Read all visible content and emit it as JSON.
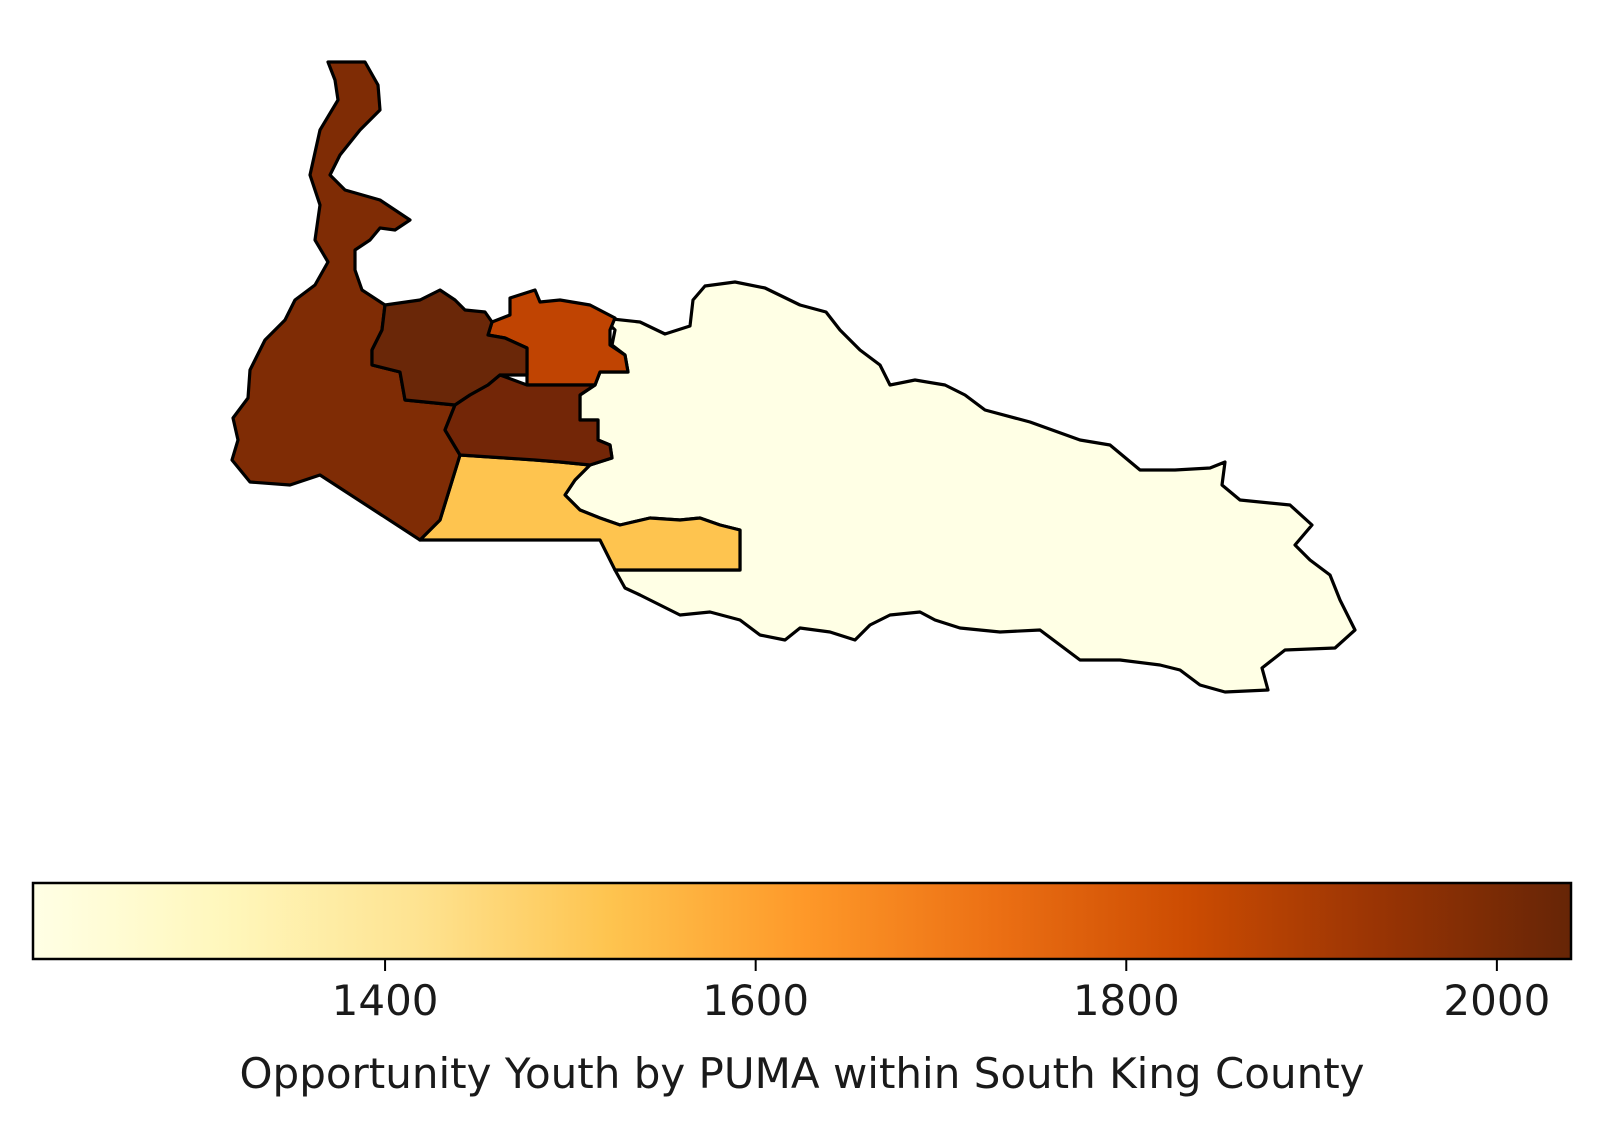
{
  "chart_data": {
    "type": "choropleth",
    "colormap": "YlOrBr",
    "colorbar": {
      "label": "Opportunity Youth by PUMA within South King County",
      "range": [
        1210,
        2040
      ],
      "ticks": [
        {
          "value": 1400,
          "label": "1400"
        },
        {
          "value": 1600,
          "label": "1600"
        },
        {
          "value": 1800,
          "label": "1800"
        },
        {
          "value": 2000,
          "label": "2000"
        }
      ],
      "gradient_colors": [
        "#ffffe5",
        "#fff7bc",
        "#fee391",
        "#fec44f",
        "#fe9929",
        "#ec7014",
        "#cc4c02",
        "#993404",
        "#662506"
      ]
    },
    "regions": [
      {
        "name": "",
        "value": 1210,
        "color": "#ffffe5"
      },
      {
        "name": "",
        "value": 1520,
        "color": "#fec44f"
      },
      {
        "name": "",
        "value": 1950,
        "color": "#7f2c05"
      },
      {
        "name": "",
        "value": 1830,
        "color": "#c04402"
      },
      {
        "name": "",
        "value": 2040,
        "color": "#6a2708"
      },
      {
        "name": "",
        "value": 2010,
        "color": "#732607"
      }
    ]
  }
}
